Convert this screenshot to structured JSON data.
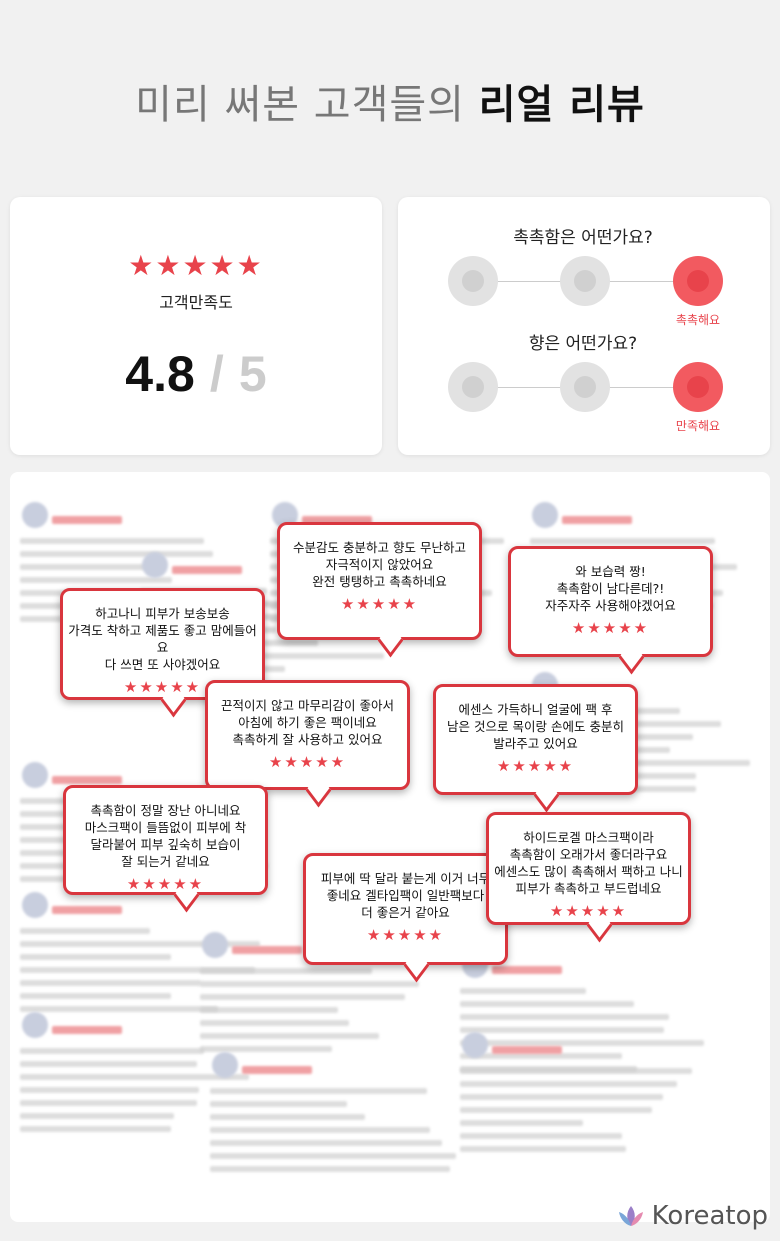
{
  "header": {
    "title_light": "미리 써본 고객들의",
    "title_bold": "리얼 리뷰"
  },
  "satisfaction": {
    "label": "고객만족도",
    "rating": "4.8",
    "separator": "/",
    "max": "5"
  },
  "survey": [
    {
      "question": "촉촉함은 어떤가요?",
      "answer": "촉촉해요"
    },
    {
      "question": "향은 어떤가요?",
      "answer": "만족해요"
    }
  ],
  "reviews": [
    {
      "lines": [
        "하고나니 피부가 보송보송",
        "가격도 착하고 제품도 좋고 맘에들어요",
        "다 쓰면 또 사야겠어요"
      ]
    },
    {
      "lines": [
        "수분감도 충분하고 향도 무난하고",
        "자극적이지 않았어요",
        "완전 탱탱하고 촉촉하네요"
      ]
    },
    {
      "lines": [
        "와 보습력 짱!",
        "촉촉함이 남다른데?!",
        "자주자주 사용해야겠어요"
      ]
    },
    {
      "lines": [
        "끈적이지 않고 마무리감이 좋아서",
        "아침에 하기 좋은 팩이네요",
        "촉촉하게 잘 사용하고 있어요"
      ]
    },
    {
      "lines": [
        "에센스 가득하니 얼굴에 팩 후",
        "남은 것으로 목이랑 손에도 충분히",
        "발라주고 있어요"
      ]
    },
    {
      "lines": [
        "촉촉함이 정말 장난 아니네요",
        "마스크팩이 들뜸없이 피부에 착",
        "달라붙어 피부 깊숙히 보습이",
        "잘 되는거 같네요"
      ]
    },
    {
      "lines": [
        "피부에 딱 달라 붙는게 이거 너무",
        "좋네요 겔타입팩이 일반팩보다",
        "더 좋은거 같아요"
      ]
    },
    {
      "lines": [
        "하이드로겔 마스크팩이라",
        "촉촉함이 오래가서 좋더라구요",
        "에센스도 많이 촉촉해서 팩하고 나니",
        "피부가 촉촉하고 부드럽네요"
      ]
    }
  ],
  "footer": {
    "brand": "Koreatop"
  }
}
